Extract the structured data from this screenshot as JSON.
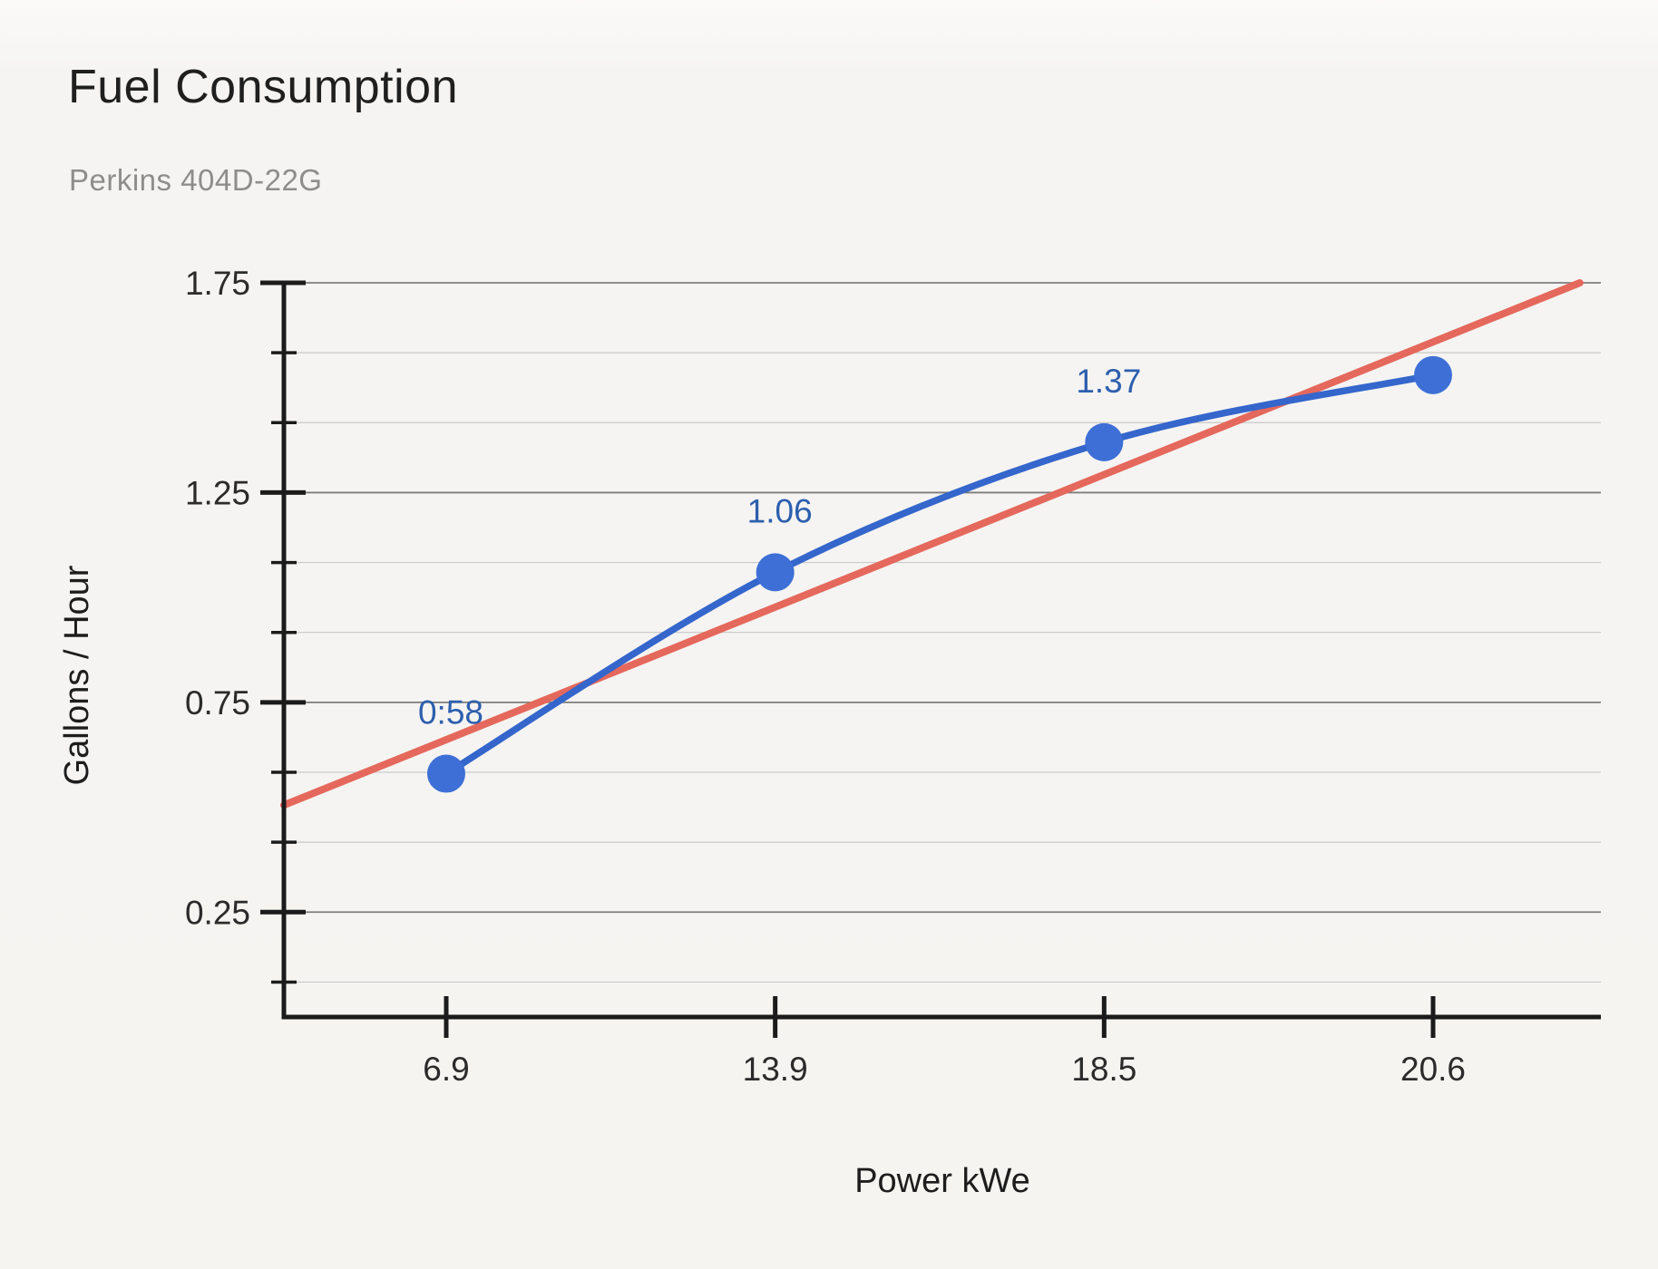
{
  "header": {
    "title": "Fuel Consumption",
    "subtitle": "Perkins 404D-22G"
  },
  "chart_data": {
    "type": "line",
    "title": "Fuel Consumption",
    "subtitle": "Perkins 404D-22G",
    "xlabel": "Power kWe",
    "ylabel": "Gallons / Hour",
    "categories": [
      "6.9",
      "13.9",
      "18.5",
      "20.6"
    ],
    "series": [
      {
        "name": "Gallons / Hour",
        "values": [
          0.58,
          1.06,
          1.37,
          1.53
        ],
        "point_labels": [
          "0:58",
          "1.06",
          "1.37",
          ""
        ],
        "smooth": true,
        "color": "#3566cc",
        "point_color": "#3d6fd6",
        "label_color": "#2d5fae"
      }
    ],
    "trendline": {
      "type": "linear",
      "intercept_at_first_category": 0.661,
      "slope_per_category": 0.316,
      "color": "#e5685c"
    },
    "y_axis": {
      "min": 0,
      "max": 1.75,
      "major_ticks": [
        0.25,
        0.75,
        1.25,
        1.75
      ],
      "major_tick_labels": [
        "0.25",
        "0.75",
        "1.25",
        "1.75"
      ],
      "minor_ticks": [
        0.0833,
        0.4167,
        0.5833,
        0.9167,
        1.0833,
        1.4167,
        1.5833
      ],
      "grid": true
    },
    "x_axis": {
      "tick_labels": [
        "6.9",
        "13.9",
        "18.5",
        "20.6"
      ]
    },
    "style": {
      "axis_color": "#1b1b1b",
      "major_grid_color": "#7d7d7d",
      "minor_grid_color": "#c9c9c9",
      "tick_label_color": "#2b2b2b",
      "axis_title_color": "#1d1d1d"
    },
    "legend_position": "none"
  }
}
